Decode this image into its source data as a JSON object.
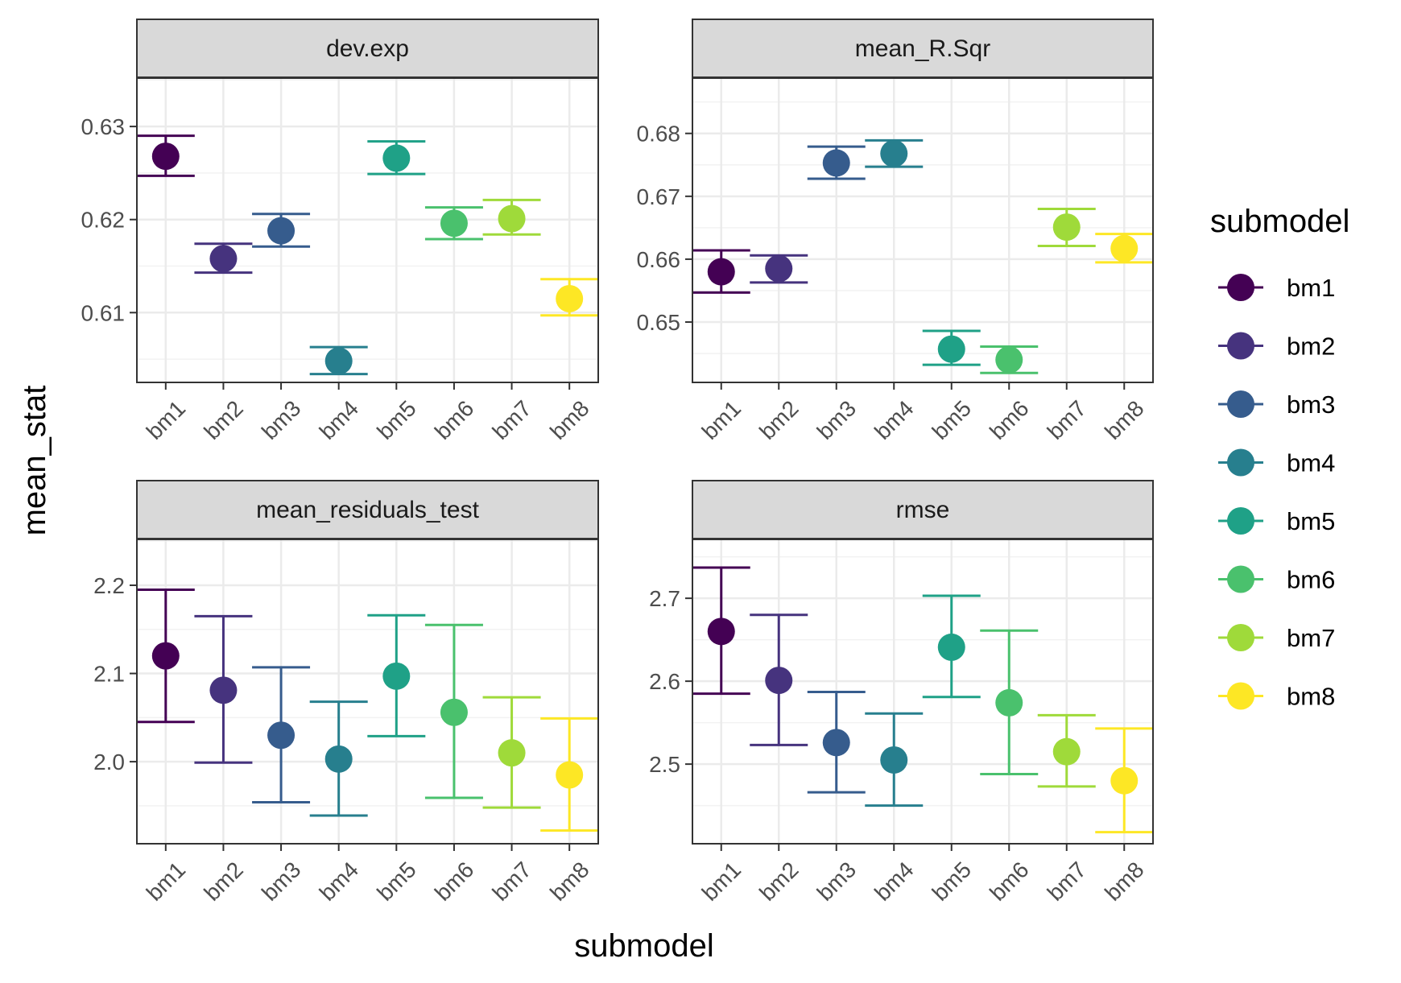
{
  "axis_title_x": "submodel",
  "axis_title_y": "mean_stat",
  "legend_title": "submodel",
  "legend_items": [
    "bm1",
    "bm2",
    "bm3",
    "bm4",
    "bm5",
    "bm6",
    "bm7",
    "bm8"
  ],
  "palette": [
    "#440154",
    "#46337E",
    "#365C8D",
    "#277F8E",
    "#1FA187",
    "#4AC16D",
    "#9FDA3A",
    "#FDE725"
  ],
  "chart_data": [
    {
      "type": "scatter",
      "title": "dev.exp",
      "categories": [
        "bm1",
        "bm2",
        "bm3",
        "bm4",
        "bm5",
        "bm6",
        "bm7",
        "bm8"
      ],
      "values": [
        0.6268,
        0.6158,
        0.6188,
        0.6048,
        0.6266,
        0.6196,
        0.6201,
        0.6115
      ],
      "lower": [
        0.6247,
        0.6143,
        0.6171,
        0.6034,
        0.6249,
        0.6179,
        0.6184,
        0.6097
      ],
      "upper": [
        0.629,
        0.6174,
        0.6206,
        0.6063,
        0.6284,
        0.6213,
        0.6221,
        0.6136
      ],
      "ylim": [
        0.6025,
        0.6352
      ],
      "yticks": [
        0.61,
        0.62,
        0.63
      ],
      "ytick_labels": [
        "0.61",
        "0.62",
        "0.63"
      ],
      "grid": true
    },
    {
      "type": "scatter",
      "title": "mean_R.Sqr",
      "categories": [
        "bm1",
        "bm2",
        "bm3",
        "bm4",
        "bm5",
        "bm6",
        "bm7",
        "bm8"
      ],
      "values": [
        0.658,
        0.6585,
        0.6753,
        0.6768,
        0.6457,
        0.644,
        0.6651,
        0.6617
      ],
      "lower": [
        0.6547,
        0.6563,
        0.6728,
        0.6747,
        0.6432,
        0.6419,
        0.6621,
        0.6595
      ],
      "upper": [
        0.6614,
        0.6606,
        0.6779,
        0.6789,
        0.6486,
        0.6461,
        0.668,
        0.664
      ],
      "ylim": [
        0.6404,
        0.6888
      ],
      "yticks": [
        0.65,
        0.66,
        0.67,
        0.68
      ],
      "ytick_labels": [
        "0.65",
        "0.66",
        "0.67",
        "0.68"
      ],
      "grid": true
    },
    {
      "type": "scatter",
      "title": "mean_residuals_test",
      "categories": [
        "bm1",
        "bm2",
        "bm3",
        "bm4",
        "bm5",
        "bm6",
        "bm7",
        "bm8"
      ],
      "values": [
        2.12,
        2.081,
        2.03,
        2.003,
        2.097,
        2.056,
        2.01,
        1.985
      ],
      "lower": [
        2.045,
        1.999,
        1.954,
        1.939,
        2.029,
        1.959,
        1.948,
        1.922
      ],
      "upper": [
        2.195,
        2.165,
        2.107,
        2.068,
        2.166,
        2.155,
        2.073,
        2.049
      ],
      "ylim": [
        1.907,
        2.252
      ],
      "yticks": [
        2.0,
        2.1,
        2.2
      ],
      "ytick_labels": [
        "2.0",
        "2.1",
        "2.2"
      ],
      "grid": true
    },
    {
      "type": "scatter",
      "title": "rmse",
      "categories": [
        "bm1",
        "bm2",
        "bm3",
        "bm4",
        "bm5",
        "bm6",
        "bm7",
        "bm8"
      ],
      "values": [
        2.66,
        2.601,
        2.526,
        2.505,
        2.641,
        2.574,
        2.515,
        2.48
      ],
      "lower": [
        2.585,
        2.523,
        2.466,
        2.45,
        2.581,
        2.488,
        2.473,
        2.418
      ],
      "upper": [
        2.737,
        2.68,
        2.587,
        2.561,
        2.703,
        2.661,
        2.559,
        2.543
      ],
      "ylim": [
        2.404,
        2.771
      ],
      "yticks": [
        2.5,
        2.6,
        2.7
      ],
      "ytick_labels": [
        "2.5",
        "2.6",
        "2.7"
      ],
      "grid": true
    }
  ]
}
